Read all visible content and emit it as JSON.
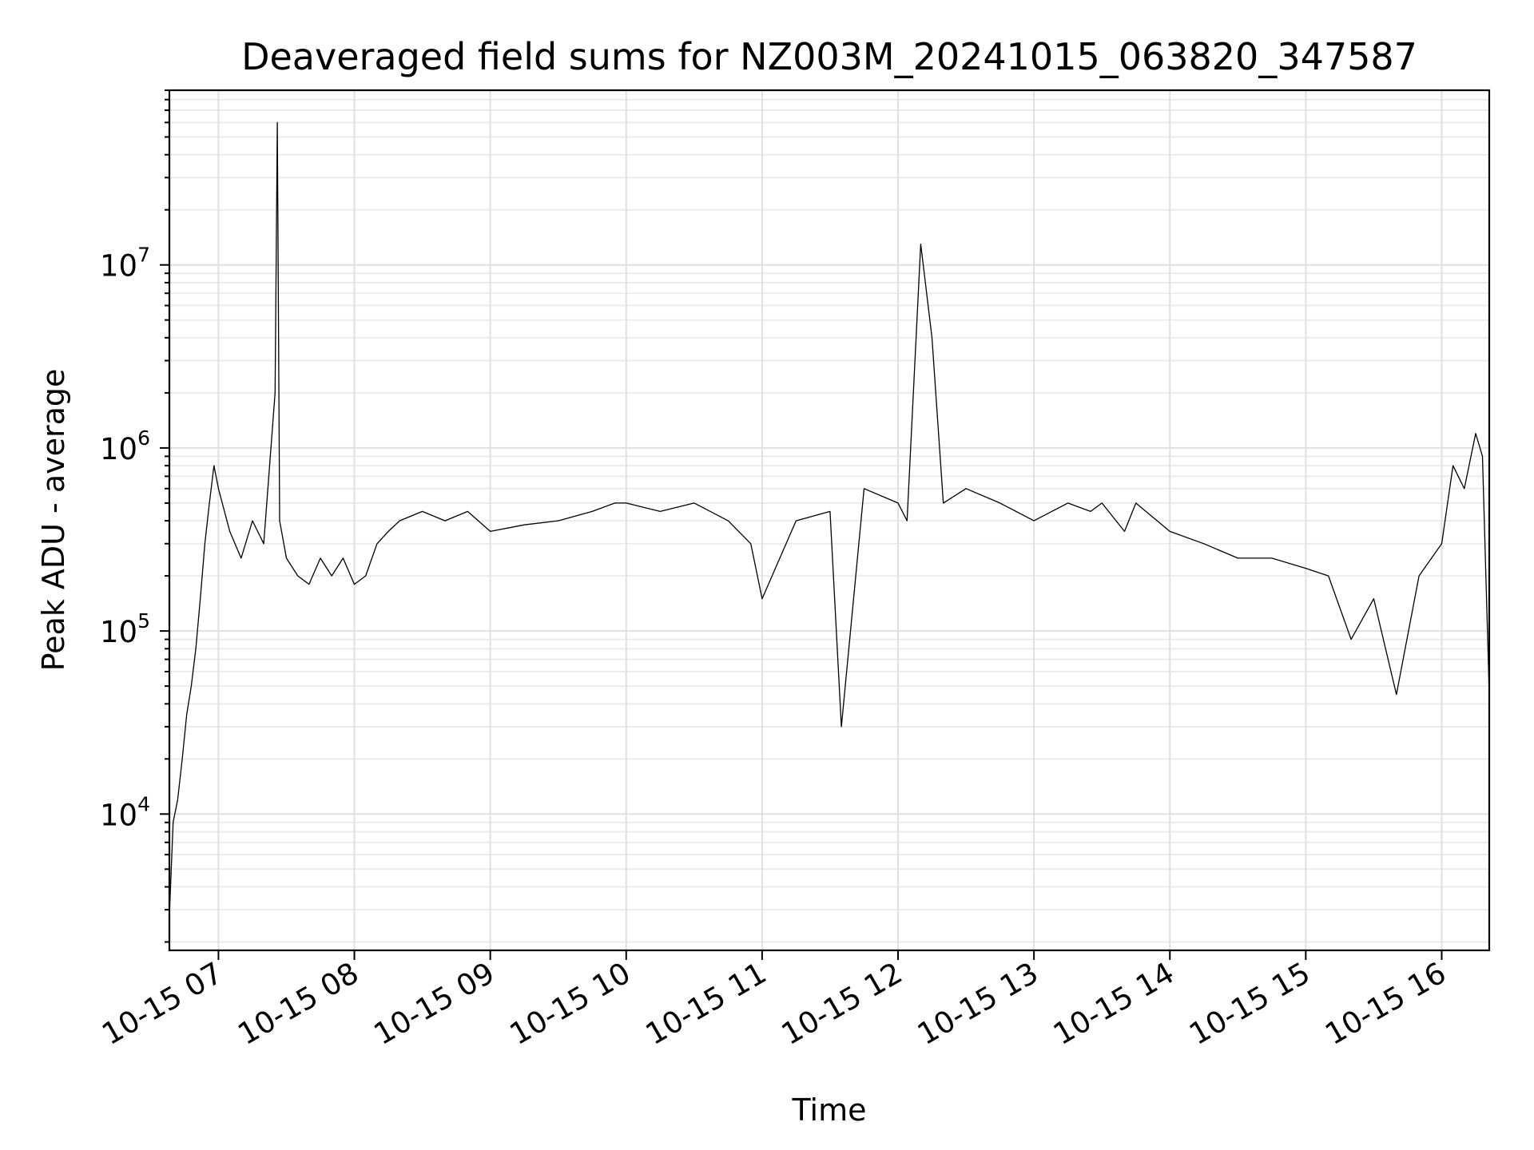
{
  "chart_data": {
    "type": "line",
    "title": "Deaveraged field sums for NZ003M_20241015_063820_347587",
    "xlabel": "Time",
    "ylabel": "Peak ADU - average",
    "xscale": "time",
    "yscale": "log",
    "xlim": [
      "2024-10-15T06:38:20",
      "2024-10-15T16:21:00"
    ],
    "ylim": [
      1800,
      90000000
    ],
    "grid": true,
    "x_ticks": [
      "10-15 07",
      "10-15 08",
      "10-15 09",
      "10-15 10",
      "10-15 11",
      "10-15 12",
      "10-15 13",
      "10-15 14",
      "10-15 15",
      "10-15 16"
    ],
    "y_ticks": [
      {
        "base": "10",
        "exp": "4",
        "value": 10000
      },
      {
        "base": "10",
        "exp": "5",
        "value": 100000
      },
      {
        "base": "10",
        "exp": "6",
        "value": 1000000
      },
      {
        "base": "10",
        "exp": "7",
        "value": 10000000
      }
    ],
    "series": [
      {
        "color": "#000000",
        "x": [
          "2024-10-15T06:38:20",
          "2024-10-15T06:40:00",
          "2024-10-15T06:42:00",
          "2024-10-15T06:44:00",
          "2024-10-15T06:46:00",
          "2024-10-15T06:48:00",
          "2024-10-15T06:50:00",
          "2024-10-15T06:52:00",
          "2024-10-15T06:54:00",
          "2024-10-15T06:56:00",
          "2024-10-15T06:58:00",
          "2024-10-15T07:00:00",
          "2024-10-15T07:05:00",
          "2024-10-15T07:10:00",
          "2024-10-15T07:15:00",
          "2024-10-15T07:20:00",
          "2024-10-15T07:25:00",
          "2024-10-15T07:26:00",
          "2024-10-15T07:27:00",
          "2024-10-15T07:30:00",
          "2024-10-15T07:35:00",
          "2024-10-15T07:40:00",
          "2024-10-15T07:45:00",
          "2024-10-15T07:50:00",
          "2024-10-15T07:55:00",
          "2024-10-15T08:00:00",
          "2024-10-15T08:05:00",
          "2024-10-15T08:10:00",
          "2024-10-15T08:15:00",
          "2024-10-15T08:20:00",
          "2024-10-15T08:30:00",
          "2024-10-15T08:40:00",
          "2024-10-15T08:50:00",
          "2024-10-15T09:00:00",
          "2024-10-15T09:15:00",
          "2024-10-15T09:30:00",
          "2024-10-15T09:45:00",
          "2024-10-15T09:55:00",
          "2024-10-15T10:00:00",
          "2024-10-15T10:15:00",
          "2024-10-15T10:30:00",
          "2024-10-15T10:45:00",
          "2024-10-15T10:55:00",
          "2024-10-15T11:00:00",
          "2024-10-15T11:15:00",
          "2024-10-15T11:30:00",
          "2024-10-15T11:35:00",
          "2024-10-15T11:45:00",
          "2024-10-15T12:00:00",
          "2024-10-15T12:04:00",
          "2024-10-15T12:10:00",
          "2024-10-15T12:15:00",
          "2024-10-15T12:20:00",
          "2024-10-15T12:30:00",
          "2024-10-15T12:45:00",
          "2024-10-15T13:00:00",
          "2024-10-15T13:15:00",
          "2024-10-15T13:25:00",
          "2024-10-15T13:30:00",
          "2024-10-15T13:40:00",
          "2024-10-15T13:45:00",
          "2024-10-15T14:00:00",
          "2024-10-15T14:15:00",
          "2024-10-15T14:30:00",
          "2024-10-15T14:45:00",
          "2024-10-15T15:00:00",
          "2024-10-15T15:10:00",
          "2024-10-15T15:20:00",
          "2024-10-15T15:30:00",
          "2024-10-15T15:40:00",
          "2024-10-15T15:50:00",
          "2024-10-15T16:00:00",
          "2024-10-15T16:05:00",
          "2024-10-15T16:10:00",
          "2024-10-15T16:15:00",
          "2024-10-15T16:18:00",
          "2024-10-15T16:21:00"
        ],
        "y": [
          2800,
          9000,
          12000,
          20000,
          35000,
          50000,
          80000,
          150000,
          300000,
          500000,
          800000,
          600000,
          350000,
          250000,
          400000,
          300000,
          2000000,
          60000000,
          400000,
          250000,
          200000,
          180000,
          250000,
          200000,
          250000,
          180000,
          200000,
          300000,
          350000,
          400000,
          450000,
          400000,
          450000,
          350000,
          380000,
          400000,
          450000,
          500000,
          500000,
          450000,
          500000,
          400000,
          300000,
          150000,
          400000,
          450000,
          30000,
          600000,
          500000,
          400000,
          13000000,
          4000000,
          500000,
          600000,
          500000,
          400000,
          500000,
          450000,
          500000,
          350000,
          500000,
          350000,
          300000,
          250000,
          250000,
          220000,
          200000,
          90000,
          150000,
          45000,
          200000,
          300000,
          800000,
          600000,
          1200000,
          900000,
          45000
        ]
      }
    ]
  }
}
